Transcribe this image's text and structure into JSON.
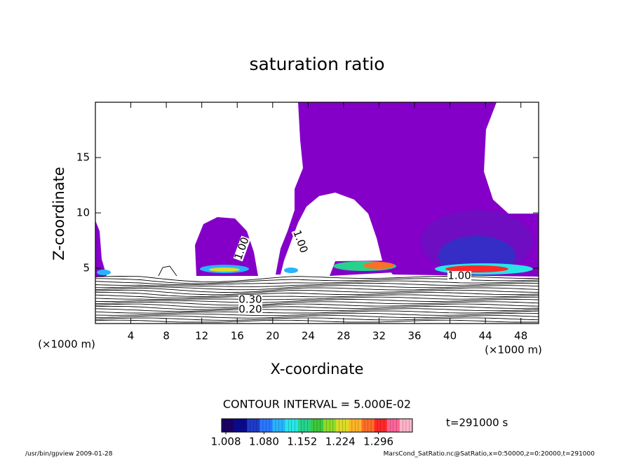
{
  "chart_data": {
    "type": "contour",
    "title": "saturation ratio",
    "x_label": "X-coordinate",
    "y_label": "Z-coordinate",
    "x_unit": "(×1000 m)",
    "y_unit": "(×1000 m)",
    "xlim": [
      0,
      50
    ],
    "xticks": [
      4,
      8,
      12,
      16,
      20,
      24,
      28,
      32,
      36,
      40,
      44,
      48
    ],
    "ylim": [
      0,
      20
    ],
    "yticks": [
      5,
      10,
      15
    ],
    "contour_interval": "CONTOUR INTERVAL = 5.000E-02",
    "contour_labels": [
      {
        "value": 1.0,
        "label": "1.00"
      },
      {
        "value": 0.3,
        "label": "0.30"
      },
      {
        "value": 0.2,
        "label": "0.20"
      }
    ],
    "colorbar": {
      "clim": [
        1.0,
        1.36
      ],
      "colors": [
        "#1a0066",
        "#0a0a8c",
        "#1e3cc8",
        "#2878ff",
        "#28b4ff",
        "#28e6e6",
        "#28d28c",
        "#3cc83c",
        "#8cdc28",
        "#dcdc28",
        "#ffb428",
        "#ff6e28",
        "#ff2828",
        "#ff6496",
        "#ffb4c8"
      ],
      "ticks": [
        {
          "value": 1.008,
          "label": "1.008"
        },
        {
          "value": 1.08,
          "label": "1.080"
        },
        {
          "value": 1.152,
          "label": "1.152"
        },
        {
          "value": 1.224,
          "label": "1.224"
        },
        {
          "value": 1.296,
          "label": "1.296"
        }
      ]
    },
    "time": "t=291000 s",
    "footer_left": "/usr/bin/gpview   2009-01-28",
    "footer_right": "MarsCond_SatRatio.nc@SatRatio,x=0:50000,z=0:20000,t=291000"
  }
}
